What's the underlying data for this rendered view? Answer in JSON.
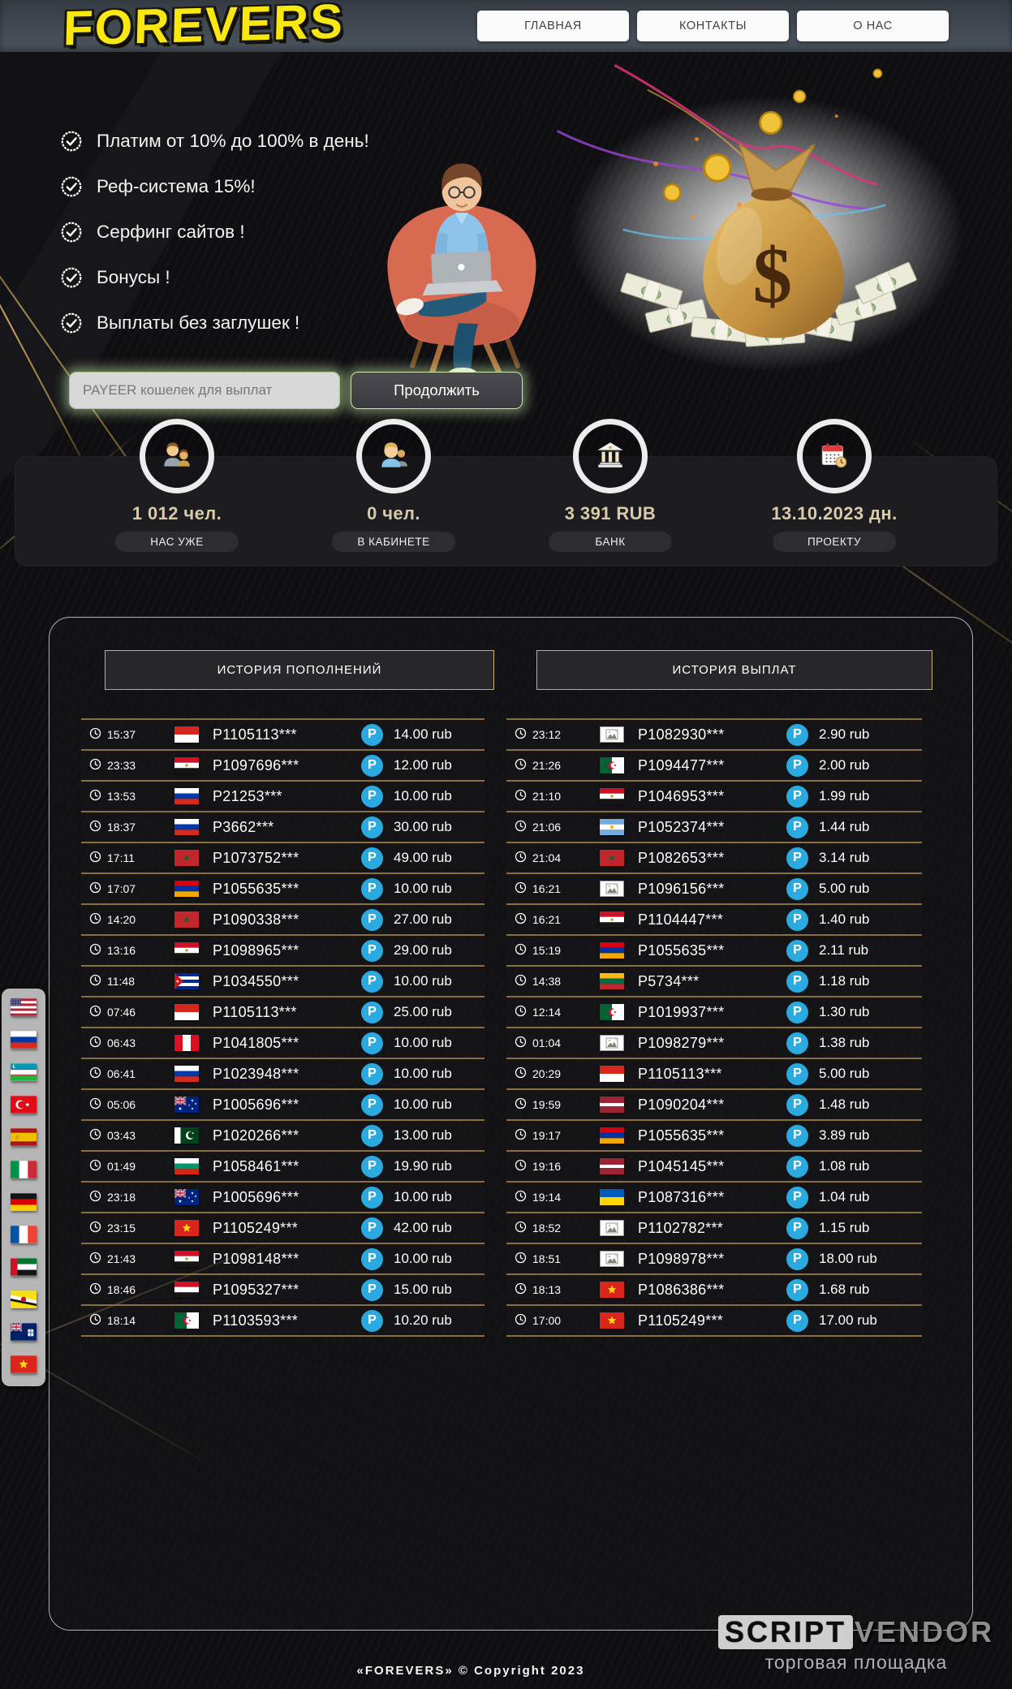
{
  "nav": {
    "logo": "FOREVERS",
    "items": [
      {
        "label": "ГЛАВНАЯ"
      },
      {
        "label": "КОНТАКТЫ"
      },
      {
        "label": "О НАС"
      }
    ]
  },
  "features": [
    "Платим от 10% до 100% в день!",
    "Реф-система 15%!",
    "Серфинг сайтов !",
    "Бонусы !",
    "Выплаты без заглушек !"
  ],
  "wallet_form": {
    "placeholder": "PAYEER кошелек для выплат",
    "button": "Продолжить"
  },
  "stats": [
    {
      "icon": "users",
      "value": "1 012 чел.",
      "label": "НАС УЖЕ"
    },
    {
      "icon": "users2",
      "value": "0 чел.",
      "label": "В КАБИНЕТЕ"
    },
    {
      "icon": "bank",
      "value": "3 391 RUB",
      "label": "БАНК"
    },
    {
      "icon": "calendar",
      "value": "13.10.2023 дн.",
      "label": "ПРОЕКТУ"
    }
  ],
  "payeer_letter": "P",
  "tables": {
    "deposits": {
      "title": "ИСТОРИЯ ПОПОЛНЕНИЙ",
      "rows": [
        {
          "time": "15:37",
          "flag": "indonesia",
          "account": "P1105113***",
          "amount": "14.00 rub"
        },
        {
          "time": "23:33",
          "flag": "egypt",
          "account": "P1097696***",
          "amount": "12.00 rub"
        },
        {
          "time": "13:53",
          "flag": "russia",
          "account": "P21253***",
          "amount": "10.00 rub"
        },
        {
          "time": "18:37",
          "flag": "russia",
          "account": "P3662***",
          "amount": "30.00 rub"
        },
        {
          "time": "17:11",
          "flag": "morocco",
          "account": "P1073752***",
          "amount": "49.00 rub"
        },
        {
          "time": "17:07",
          "flag": "armenia",
          "account": "P1055635***",
          "amount": "10.00 rub"
        },
        {
          "time": "14:20",
          "flag": "morocco",
          "account": "P1090338***",
          "amount": "27.00 rub"
        },
        {
          "time": "13:16",
          "flag": "egypt",
          "account": "P1098965***",
          "amount": "29.00 rub"
        },
        {
          "time": "11:48",
          "flag": "cuba",
          "account": "P1034550***",
          "amount": "10.00 rub"
        },
        {
          "time": "07:46",
          "flag": "indonesia",
          "account": "P1105113***",
          "amount": "25.00 rub"
        },
        {
          "time": "06:43",
          "flag": "peru",
          "account": "P1041805***",
          "amount": "10.00 rub"
        },
        {
          "time": "06:41",
          "flag": "russia",
          "account": "P1023948***",
          "amount": "10.00 rub"
        },
        {
          "time": "05:06",
          "flag": "australia",
          "account": "P1005696***",
          "amount": "10.00 rub"
        },
        {
          "time": "03:43",
          "flag": "pakistan",
          "account": "P1020266***",
          "amount": "13.00 rub"
        },
        {
          "time": "01:49",
          "flag": "bulgaria",
          "account": "P1058461***",
          "amount": "19.90 rub"
        },
        {
          "time": "23:18",
          "flag": "australia",
          "account": "P1005696***",
          "amount": "10.00 rub"
        },
        {
          "time": "23:15",
          "flag": "vietnam",
          "account": "P1105249***",
          "amount": "42.00 rub"
        },
        {
          "time": "21:43",
          "flag": "egypt",
          "account": "P1098148***",
          "amount": "10.00 rub"
        },
        {
          "time": "18:46",
          "flag": "yemen",
          "account": "P1095327***",
          "amount": "15.00 rub"
        },
        {
          "time": "18:14",
          "flag": "algeria",
          "account": "P1103593***",
          "amount": "10.20 rub"
        }
      ]
    },
    "withdrawals": {
      "title": "ИСТОРИЯ ВЫПЛАТ",
      "rows": [
        {
          "time": "23:12",
          "flag": "broken",
          "account": "P1082930***",
          "amount": "2.90 rub"
        },
        {
          "time": "21:26",
          "flag": "algeria",
          "account": "P1094477***",
          "amount": "2.00 rub"
        },
        {
          "time": "21:10",
          "flag": "egypt",
          "account": "P1046953***",
          "amount": "1.99 rub"
        },
        {
          "time": "21:06",
          "flag": "argentina",
          "account": "P1052374***",
          "amount": "1.44 rub"
        },
        {
          "time": "21:04",
          "flag": "morocco",
          "account": "P1082653***",
          "amount": "3.14 rub"
        },
        {
          "time": "16:21",
          "flag": "broken",
          "account": "P1096156***",
          "amount": "5.00 rub"
        },
        {
          "time": "16:21",
          "flag": "egypt",
          "account": "P1104447***",
          "amount": "1.40 rub"
        },
        {
          "time": "15:19",
          "flag": "armenia",
          "account": "P1055635***",
          "amount": "2.11 rub"
        },
        {
          "time": "14:38",
          "flag": "lithuania",
          "account": "P5734***",
          "amount": "1.18 rub"
        },
        {
          "time": "12:14",
          "flag": "algeria",
          "account": "P1019937***",
          "amount": "1.30 rub"
        },
        {
          "time": "01:04",
          "flag": "broken",
          "account": "P1098279***",
          "amount": "1.38 rub"
        },
        {
          "time": "20:29",
          "flag": "indonesia",
          "account": "P1105113***",
          "amount": "5.00 rub"
        },
        {
          "time": "19:59",
          "flag": "latvia",
          "account": "P1090204***",
          "amount": "1.48 rub"
        },
        {
          "time": "19:17",
          "flag": "armenia",
          "account": "P1055635***",
          "amount": "3.89 rub"
        },
        {
          "time": "19:16",
          "flag": "latvia",
          "account": "P1045145***",
          "amount": "1.08 rub"
        },
        {
          "time": "19:14",
          "flag": "ukraine",
          "account": "P1087316***",
          "amount": "1.04 rub"
        },
        {
          "time": "18:52",
          "flag": "broken",
          "account": "P1102782***",
          "amount": "1.15 rub"
        },
        {
          "time": "18:51",
          "flag": "broken",
          "account": "P1098978***",
          "amount": "18.00 rub"
        },
        {
          "time": "18:13",
          "flag": "vietnam",
          "account": "P1086386***",
          "amount": "1.68 rub"
        },
        {
          "time": "17:00",
          "flag": "vietnam",
          "account": "P1105249***",
          "amount": "17.00 rub"
        }
      ]
    }
  },
  "sidebar_flags": [
    "usa",
    "russia",
    "uzbekistan",
    "turkey",
    "spain",
    "italy",
    "germany",
    "france",
    "uae",
    "brunei",
    "ensign",
    "vietnam"
  ],
  "footer": {
    "vendor_left": "SCRIPT",
    "vendor_right": "VENDOR",
    "vendor_sub": "торговая площадка",
    "copyright": "«FOREVERS» © Copyright 2023"
  },
  "colors": {
    "accent_gold": "#8a6f3a",
    "payeer_blue": "#29abe2",
    "logo_yellow": "#f8e712",
    "header_border_gold": "#c9b44e"
  }
}
